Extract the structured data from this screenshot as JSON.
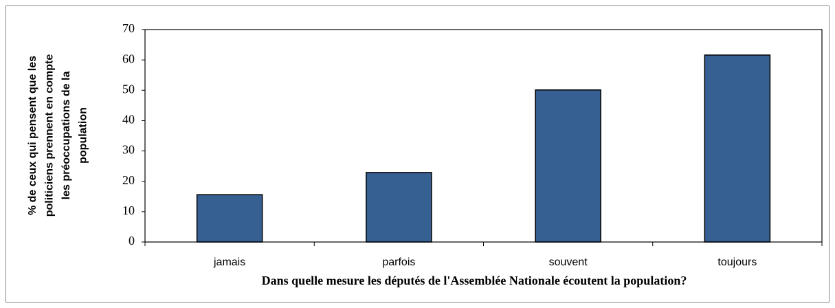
{
  "chart_data": {
    "type": "bar",
    "xlabel": "Dans quelle mesure les députés de l'Assemblée Nationale écoutent la population?",
    "ylabel": [
      "% de ceux qui pensent que les",
      "politiciens prennent en compte",
      "les préoccupations de la",
      "population"
    ],
    "categories": [
      "jamais",
      "parfois",
      "souvent",
      "toujours"
    ],
    "values": [
      15.6,
      22.9,
      50.1,
      61.6
    ],
    "color": "#376092",
    "ylim": [
      0,
      70
    ],
    "yticks": [
      0,
      10,
      20,
      30,
      40,
      50,
      60,
      70
    ],
    "grid": false
  }
}
